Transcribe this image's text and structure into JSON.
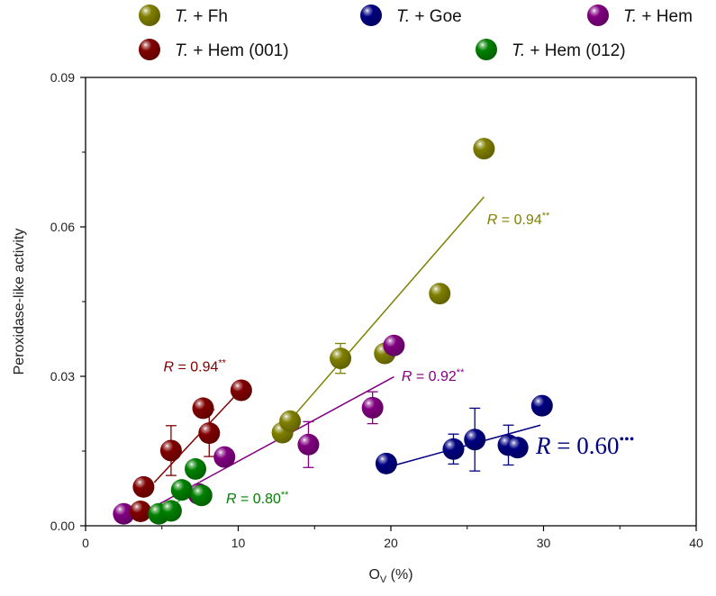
{
  "chart_data": {
    "type": "scatter",
    "title": "",
    "xlabel": "O",
    "xlabel_sub": "V",
    "xlabel_suffix": " (%)",
    "ylabel": "Peroxidase-like activity",
    "xlim": [
      0,
      40
    ],
    "ylim": [
      0,
      0.09
    ],
    "xticks": [
      0,
      10,
      20,
      30,
      40
    ],
    "xtick_labels": [
      "0",
      "10",
      "20",
      "30",
      "40"
    ],
    "yticks": [
      0,
      0.03,
      0.06,
      0.09
    ],
    "ytick_labels": [
      "0.00",
      "0.03",
      "0.06",
      "0.09"
    ],
    "grid": false,
    "legend_placement": "top",
    "series": [
      {
        "name": "T. + Fh",
        "legend_prefix": "T.",
        "legend_suffix": " + Fh",
        "color": "#7f7f00",
        "points": [
          {
            "x": 12.9,
            "y": 0.0187,
            "err": 0
          },
          {
            "x": 13.4,
            "y": 0.021,
            "err": 0
          },
          {
            "x": 16.7,
            "y": 0.0336,
            "err": 0.003
          },
          {
            "x": 19.6,
            "y": 0.0346,
            "err": 0
          },
          {
            "x": 23.2,
            "y": 0.0466,
            "err": 0
          },
          {
            "x": 26.1,
            "y": 0.0757,
            "err": 0
          }
        ],
        "fit": {
          "x": [
            13.2,
            26.1
          ],
          "y": [
            0.0205,
            0.066
          ]
        },
        "r_label": {
          "prefix": "R",
          "text": " = 0.94",
          "sig": "**",
          "x": 26.3,
          "y": 0.0605
        }
      },
      {
        "name": "T. + Goe",
        "legend_prefix": "T.",
        "legend_suffix": " + Goe",
        "color": "#000080",
        "points": [
          {
            "x": 19.7,
            "y": 0.0125,
            "err": 0
          },
          {
            "x": 24.1,
            "y": 0.0154,
            "err": 0.003
          },
          {
            "x": 25.5,
            "y": 0.0173,
            "err": 0.0063
          },
          {
            "x": 27.7,
            "y": 0.0162,
            "err": 0.004
          },
          {
            "x": 28.3,
            "y": 0.0157,
            "err": 0
          },
          {
            "x": 29.9,
            "y": 0.0241,
            "err": 0
          }
        ],
        "fit": {
          "x": [
            20.3,
            29.8
          ],
          "y": [
            0.0122,
            0.0202
          ]
        },
        "r_label": {
          "prefix": "R",
          "text": " = 0.60",
          "sig": "•••",
          "x": 29.5,
          "y": 0.0145
        }
      },
      {
        "name": "T. + Hem",
        "legend_prefix": "T.",
        "legend_suffix": " + Hem",
        "color": "#800080",
        "points": [
          {
            "x": 2.5,
            "y": 0.0024,
            "err": 0
          },
          {
            "x": 7.4,
            "y": 0.0064,
            "err": 0.0012
          },
          {
            "x": 9.1,
            "y": 0.0138,
            "err": 0
          },
          {
            "x": 14.6,
            "y": 0.0163,
            "err": 0.0046
          },
          {
            "x": 18.8,
            "y": 0.0237,
            "err": 0.0032
          },
          {
            "x": 20.2,
            "y": 0.0362,
            "err": 0
          }
        ],
        "fit": {
          "x": [
            3.1,
            20.2
          ],
          "y": [
            0.0015,
            0.0299
          ]
        },
        "r_label": {
          "prefix": "R",
          "text": " = 0.92",
          "sig": "**",
          "x": 20.7,
          "y": 0.0291
        }
      },
      {
        "name": "T. + Hem (001)",
        "legend_prefix": "T.",
        "legend_suffix": " + Hem (001)",
        "color": "#800000",
        "points": [
          {
            "x": 3.6,
            "y": 0.0029,
            "err": 0
          },
          {
            "x": 3.8,
            "y": 0.0078,
            "err": 0
          },
          {
            "x": 5.6,
            "y": 0.0151,
            "err": 0.005
          },
          {
            "x": 7.7,
            "y": 0.0236,
            "err": 0
          },
          {
            "x": 8.1,
            "y": 0.0186,
            "err": 0.0047
          },
          {
            "x": 10.2,
            "y": 0.0272,
            "err": 0
          }
        ],
        "fit": {
          "x": [
            4.5,
            10.2
          ],
          "y": [
            0.0087,
            0.0274
          ]
        },
        "r_label": {
          "prefix": "R",
          "text": " = 0.94",
          "sig": "**",
          "x": 5.1,
          "y": 0.031
        }
      },
      {
        "name": "T. + Hem (012)",
        "legend_prefix": "T.",
        "legend_suffix": " + Hem (012)",
        "color": "#008000",
        "points": [
          {
            "x": 4.8,
            "y": 0.0024,
            "err": 0
          },
          {
            "x": 5.6,
            "y": 0.003,
            "err": 0
          },
          {
            "x": 6.3,
            "y": 0.0072,
            "err": 0
          },
          {
            "x": 7.2,
            "y": 0.0114,
            "err": 0
          },
          {
            "x": 7.6,
            "y": 0.0061,
            "err": 0
          }
        ],
        "fit": {
          "x": [
            5.0,
            7.5
          ],
          "y": [
            0.002,
            0.0087
          ]
        },
        "r_label": {
          "prefix": "R",
          "text": " = 0.80",
          "sig": "**",
          "x": 9.2,
          "y": 0.0045
        }
      }
    ]
  }
}
